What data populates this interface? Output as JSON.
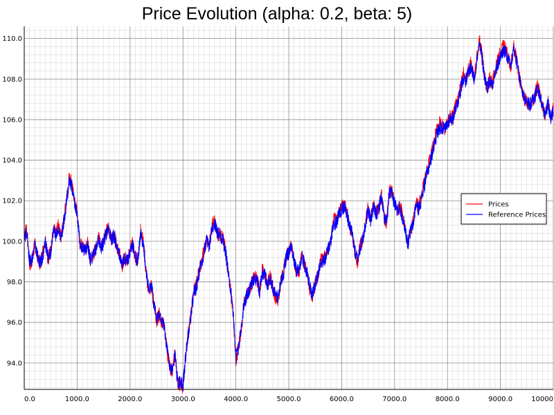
{
  "chart_data": {
    "type": "line",
    "title": "Price Evolution (alpha: 0.2, beta: 5)",
    "xlabel": "",
    "ylabel": "",
    "xlim": [
      0,
      10000
    ],
    "ylim": [
      92.7,
      110.6
    ],
    "x_ticks": [
      0,
      1000,
      2000,
      3000,
      4000,
      5000,
      6000,
      7000,
      8000,
      9000,
      10000
    ],
    "x_tick_labels": [
      "0.0",
      "1000.0",
      "2000.0",
      "3000.0",
      "4000.0",
      "5000.0",
      "6000.0",
      "7000.0",
      "8000.0",
      "9000.0",
      "10000"
    ],
    "y_ticks": [
      94,
      96,
      98,
      100,
      102,
      104,
      106,
      108,
      110
    ],
    "y_tick_labels": [
      "94.0",
      "96.0",
      "98.0",
      "100.0",
      "102.0",
      "104.0",
      "106.0",
      "108.0",
      "110.0"
    ],
    "grid": true,
    "legend_position": "right",
    "series": [
      {
        "name": "Prices",
        "color": "#ff0000",
        "x": [
          0,
          50,
          100,
          150,
          200,
          250,
          300,
          350,
          400,
          450,
          500,
          550,
          600,
          650,
          700,
          750,
          800,
          850,
          900,
          950,
          1000,
          1050,
          1100,
          1150,
          1200,
          1250,
          1300,
          1350,
          1400,
          1450,
          1500,
          1550,
          1600,
          1650,
          1700,
          1750,
          1800,
          1850,
          1900,
          1950,
          2000,
          2050,
          2100,
          2150,
          2200,
          2250,
          2300,
          2350,
          2400,
          2450,
          2500,
          2550,
          2600,
          2650,
          2700,
          2750,
          2800,
          2850,
          2900,
          2950,
          3000,
          3050,
          3100,
          3150,
          3200,
          3250,
          3300,
          3350,
          3400,
          3450,
          3500,
          3550,
          3600,
          3650,
          3700,
          3750,
          3800,
          3850,
          3900,
          3950,
          4000,
          4050,
          4100,
          4150,
          4200,
          4250,
          4300,
          4350,
          4400,
          4450,
          4500,
          4550,
          4600,
          4650,
          4700,
          4750,
          4800,
          4850,
          4900,
          4950,
          5000,
          5050,
          5100,
          5150,
          5200,
          5250,
          5300,
          5350,
          5400,
          5450,
          5500,
          5550,
          5600,
          5650,
          5700,
          5750,
          5800,
          5850,
          5900,
          5950,
          6000,
          6050,
          6100,
          6150,
          6200,
          6250,
          6300,
          6350,
          6400,
          6450,
          6500,
          6550,
          6600,
          6650,
          6700,
          6750,
          6800,
          6850,
          6900,
          6950,
          7000,
          7050,
          7100,
          7150,
          7200,
          7250,
          7300,
          7350,
          7400,
          7450,
          7500,
          7550,
          7600,
          7650,
          7700,
          7750,
          7800,
          7850,
          7900,
          7950,
          8000,
          8050,
          8100,
          8150,
          8200,
          8250,
          8300,
          8350,
          8400,
          8450,
          8500,
          8550,
          8600,
          8650,
          8700,
          8750,
          8800,
          8850,
          8900,
          8950,
          9000,
          9050,
          9100,
          9150,
          9200,
          9250,
          9300,
          9350,
          9400,
          9450,
          9500,
          9550,
          9600,
          9650,
          9700,
          9750,
          9800,
          9850,
          9900,
          9950,
          10000
        ],
        "y": [
          100.3,
          100.6,
          98.9,
          99.0,
          99.9,
          99.3,
          98.8,
          99.4,
          100.0,
          99.1,
          99.5,
          100.6,
          100.4,
          100.8,
          100.2,
          101.1,
          102.0,
          103.2,
          102.8,
          101.9,
          101.5,
          99.9,
          99.7,
          99.5,
          99.9,
          99.0,
          99.3,
          99.6,
          100.3,
          99.7,
          100.0,
          100.5,
          100.6,
          100.1,
          100.4,
          99.7,
          99.4,
          98.8,
          99.2,
          99.0,
          99.6,
          99.9,
          99.2,
          99.0,
          100.5,
          100.0,
          98.5,
          97.6,
          97.8,
          96.9,
          96.1,
          96.4,
          96.0,
          95.8,
          94.6,
          93.8,
          93.5,
          94.6,
          92.9,
          93.0,
          92.8,
          94.4,
          95.5,
          96.4,
          97.5,
          97.8,
          98.5,
          99.0,
          99.6,
          100.1,
          99.8,
          100.8,
          101.0,
          100.4,
          100.3,
          100.2,
          99.6,
          98.5,
          97.6,
          96.4,
          94.1,
          94.8,
          95.7,
          96.9,
          97.4,
          97.6,
          97.9,
          98.3,
          98.1,
          97.5,
          98.6,
          98.3,
          97.9,
          98.3,
          97.7,
          97.2,
          97.1,
          98.0,
          98.5,
          99.3,
          99.5,
          99.8,
          99.1,
          98.4,
          98.6,
          99.4,
          98.8,
          98.4,
          97.6,
          97.3,
          97.9,
          98.3,
          99.0,
          99.2,
          99.3,
          99.7,
          100.1,
          101.1,
          101.0,
          101.5,
          101.7,
          101.8,
          101.5,
          100.7,
          100.4,
          99.4,
          99.0,
          99.8,
          100.1,
          100.9,
          101.8,
          101.1,
          101.8,
          101.4,
          101.7,
          102.3,
          101.2,
          100.9,
          102.6,
          102.4,
          102.0,
          101.5,
          101.8,
          101.3,
          100.6,
          99.8,
          100.5,
          100.9,
          101.9,
          101.7,
          102.1,
          102.8,
          103.3,
          103.9,
          104.4,
          105.0,
          105.5,
          105.8,
          105.7,
          105.5,
          105.9,
          106.2,
          106.1,
          106.7,
          107.0,
          107.6,
          108.3,
          108.0,
          108.5,
          108.8,
          108.0,
          108.9,
          110.0,
          109.3,
          108.1,
          107.6,
          108.0,
          107.8,
          108.4,
          108.9,
          109.3,
          109.6,
          109.5,
          109.0,
          108.6,
          109.7,
          109.0,
          108.2,
          107.5,
          107.0,
          106.9,
          106.6,
          106.9,
          107.2,
          107.7,
          107.2,
          106.6,
          106.2,
          106.9,
          106.1,
          106.5
        ]
      },
      {
        "name": "Reference Prices",
        "color": "#0000ff",
        "x": [
          0,
          50,
          100,
          150,
          200,
          250,
          300,
          350,
          400,
          450,
          500,
          550,
          600,
          650,
          700,
          750,
          800,
          850,
          900,
          950,
          1000,
          1050,
          1100,
          1150,
          1200,
          1250,
          1300,
          1350,
          1400,
          1450,
          1500,
          1550,
          1600,
          1650,
          1700,
          1750,
          1800,
          1850,
          1900,
          1950,
          2000,
          2050,
          2100,
          2150,
          2200,
          2250,
          2300,
          2350,
          2400,
          2450,
          2500,
          2550,
          2600,
          2650,
          2700,
          2750,
          2800,
          2850,
          2900,
          2950,
          3000,
          3050,
          3100,
          3150,
          3200,
          3250,
          3300,
          3350,
          3400,
          3450,
          3500,
          3550,
          3600,
          3650,
          3700,
          3750,
          3800,
          3850,
          3900,
          3950,
          4000,
          4050,
          4100,
          4150,
          4200,
          4250,
          4300,
          4350,
          4400,
          4450,
          4500,
          4550,
          4600,
          4650,
          4700,
          4750,
          4800,
          4850,
          4900,
          4950,
          5000,
          5050,
          5100,
          5150,
          5200,
          5250,
          5300,
          5350,
          5400,
          5450,
          5500,
          5550,
          5600,
          5650,
          5700,
          5750,
          5800,
          5850,
          5900,
          5950,
          6000,
          6050,
          6100,
          6150,
          6200,
          6250,
          6300,
          6350,
          6400,
          6450,
          6500,
          6550,
          6600,
          6650,
          6700,
          6750,
          6800,
          6850,
          6900,
          6950,
          7000,
          7050,
          7100,
          7150,
          7200,
          7250,
          7300,
          7350,
          7400,
          7450,
          7500,
          7550,
          7600,
          7650,
          7700,
          7750,
          7800,
          7850,
          7900,
          7950,
          8000,
          8050,
          8100,
          8150,
          8200,
          8250,
          8300,
          8350,
          8400,
          8450,
          8500,
          8550,
          8600,
          8650,
          8700,
          8750,
          8800,
          8850,
          8900,
          8950,
          9000,
          9050,
          9100,
          9150,
          9200,
          9250,
          9300,
          9350,
          9400,
          9450,
          9500,
          9550,
          9600,
          9650,
          9700,
          9750,
          9800,
          9850,
          9900,
          9950,
          10000
        ],
        "y": [
          100.2,
          100.4,
          99.0,
          99.1,
          99.8,
          99.3,
          98.9,
          99.3,
          99.9,
          99.2,
          99.5,
          100.5,
          100.3,
          100.7,
          100.2,
          101.0,
          101.9,
          103.0,
          102.7,
          101.8,
          101.4,
          99.9,
          99.7,
          99.5,
          99.8,
          99.1,
          99.3,
          99.6,
          100.2,
          99.7,
          99.9,
          100.4,
          100.5,
          100.1,
          100.3,
          99.7,
          99.4,
          98.9,
          99.2,
          99.0,
          99.5,
          99.8,
          99.2,
          99.1,
          100.4,
          99.9,
          98.6,
          97.7,
          97.8,
          97.0,
          96.2,
          96.4,
          96.1,
          95.8,
          94.7,
          93.9,
          93.6,
          94.5,
          93.0,
          93.1,
          92.9,
          94.3,
          95.4,
          96.3,
          97.4,
          97.7,
          98.4,
          98.9,
          99.5,
          100.0,
          99.8,
          100.7,
          100.9,
          100.4,
          100.3,
          100.1,
          99.6,
          98.6,
          97.7,
          96.5,
          94.2,
          94.8,
          95.6,
          96.8,
          97.3,
          97.5,
          97.9,
          98.2,
          98.1,
          97.5,
          98.5,
          98.3,
          97.9,
          98.2,
          97.7,
          97.3,
          97.2,
          98.0,
          98.4,
          99.2,
          99.4,
          99.7,
          99.1,
          98.5,
          98.6,
          99.3,
          98.8,
          98.4,
          97.7,
          97.4,
          97.9,
          98.3,
          98.9,
          99.1,
          99.2,
          99.6,
          100.0,
          100.9,
          100.9,
          101.4,
          101.6,
          101.7,
          101.4,
          100.7,
          100.4,
          99.5,
          99.1,
          99.7,
          100.1,
          100.8,
          101.6,
          101.0,
          101.7,
          101.3,
          101.6,
          102.2,
          101.2,
          100.9,
          102.4,
          102.3,
          101.9,
          101.5,
          101.7,
          101.2,
          100.6,
          99.9,
          100.5,
          100.8,
          101.8,
          101.6,
          102.0,
          102.6,
          103.2,
          103.7,
          104.2,
          104.8,
          105.3,
          105.6,
          105.6,
          105.5,
          105.8,
          106.1,
          106.0,
          106.6,
          106.9,
          107.5,
          108.1,
          107.9,
          108.4,
          108.6,
          108.0,
          108.8,
          109.7,
          109.1,
          108.1,
          107.6,
          107.9,
          107.8,
          108.3,
          108.7,
          109.1,
          109.4,
          109.3,
          108.9,
          108.6,
          109.5,
          108.9,
          108.2,
          107.5,
          107.1,
          106.9,
          106.7,
          106.9,
          107.1,
          107.6,
          107.1,
          106.6,
          106.2,
          106.8,
          106.1,
          106.4
        ]
      }
    ]
  }
}
